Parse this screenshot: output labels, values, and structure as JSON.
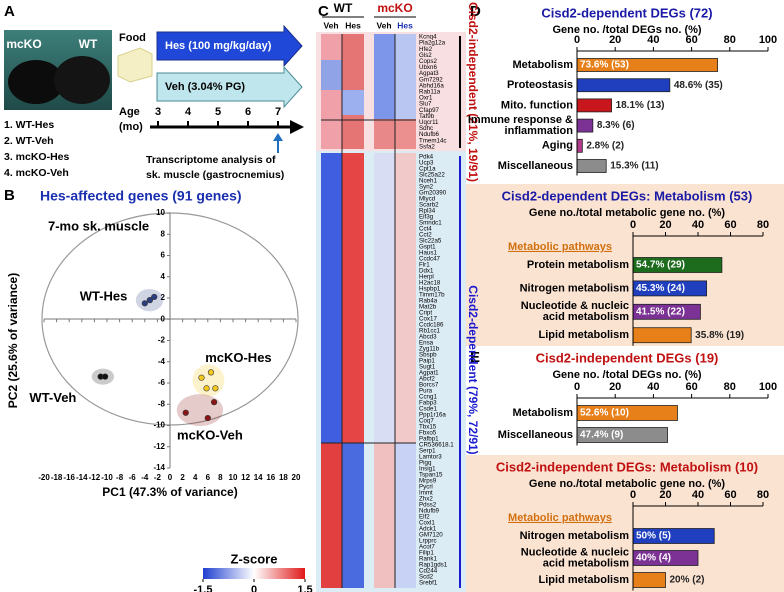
{
  "panel_labels": [
    "A",
    "B",
    "C",
    "D",
    "E"
  ],
  "design": {
    "photo_labels": [
      "mcKO",
      "WT"
    ],
    "groups": [
      "1. WT-Hes",
      "2. WT-Veh",
      "3. mcKO-Hes",
      "4. mcKO-Veh"
    ],
    "food": "Food",
    "hes": "Hes (100 mg/kg/day)",
    "veh": "Veh (3.04% PG)",
    "age": "Age",
    "age_unit": "(mo)",
    "ages": [
      3,
      4,
      5,
      6,
      7
    ],
    "analysis": [
      "Transcriptome analysis of",
      "sk. muscle (gastrocnemius)"
    ]
  },
  "heatmap": {
    "groups": [
      "WT",
      "mcKO"
    ],
    "columns": [
      "Veh",
      "Hes",
      "Veh",
      "Hes"
    ],
    "sections": [
      {
        "label": "Cisd2-independent (21%, 19/91)",
        "genes": [
          "Kcnq4",
          "Pla2g12a",
          "Hfe2",
          "Gls2",
          "Cops2",
          "Ubxn6",
          "Agpat3",
          "Gm7292",
          "Abhd16a",
          "Rab11a",
          "Oxr1",
          "Slu7",
          "Cfap97",
          "Taf9b",
          "Uqcr11",
          "Sdhc",
          "Ndufb6",
          "Tmem14c",
          "Ssfa2"
        ]
      },
      {
        "label": "Cisd2-dependent (79%, 72/91)",
        "genes": [
          "Pdk4",
          "Ucp3",
          "Cpt1a",
          "Slc25a22",
          "Nceh1",
          "Syn2",
          "Gm20390",
          "Mlycd",
          "Scarb2",
          "Rpl34",
          "Eif3g",
          "Smndc1",
          "Cct4",
          "Cct2",
          "Slc22a5",
          "Gspt1",
          "Haus1",
          "Ccdc47",
          "Flr1",
          "Ddx1",
          "Herpl",
          "H2ac18",
          "Hspbp1",
          "Timm17b",
          "Rab4a",
          "Mat2b",
          "Cript",
          "Cox17",
          "Ccdc186",
          "Rb1cc1",
          "Abcd3",
          "Ensa",
          "Zyg11b",
          "Sbspb",
          "Paip1",
          "Sugt1",
          "Agpat1",
          "Abcf2",
          "Borcs7",
          "Pura",
          "Ccng1",
          "Fabp3",
          "Csde1",
          "Ppp1r16a",
          "Coq7",
          "Tbx15",
          "Fbxo5",
          "Pafbp1",
          "CR536618.1",
          "Serp1",
          "Lamtor3",
          "Pigq",
          "Insig1",
          "Tspan15",
          "Mrps9",
          "Pycrl",
          "Immt",
          "Zhx2",
          "Pdss2",
          "Ndufb9",
          "Elf2",
          "Coxl1",
          "Adck1",
          "GM7120",
          "Lrpprc",
          "Acot7",
          "Filip1",
          "Rank1",
          "Rap1gds1",
          "Cd244",
          "Scd2",
          "Srebf1"
        ]
      }
    ],
    "legend": {
      "title": "Z-score",
      "lim": [
        -1.5,
        1.5
      ],
      "ticks": [
        -1.5,
        0,
        1.5
      ]
    }
  },
  "chart_data": [
    {
      "type": "scatter",
      "title": "Hes-affected genes (91 genes)",
      "title_color": "#1a2fb0",
      "subtitle": "7-mo sk. muscle",
      "xlabel": "PC1 (47.3% of variance)",
      "ylabel": "PC2 (25.6% of variance)",
      "xlim": [
        -20,
        20
      ],
      "ylim": [
        -14,
        10
      ],
      "xticks": [
        -20,
        -18,
        -16,
        -14,
        -12,
        -10,
        -8,
        -6,
        -4,
        -2,
        0,
        2,
        4,
        6,
        8,
        10,
        12,
        14,
        16,
        18,
        20
      ],
      "yticks": [
        10,
        8,
        6,
        4,
        2,
        0,
        -2,
        -4,
        -6,
        -8,
        -10,
        -12,
        -14
      ],
      "series": [
        {
          "name": "WT-Hes",
          "color": "#2b3f80",
          "x": [
            -4,
            -3.2,
            -2.5
          ],
          "y": [
            1.5,
            1.8,
            2.1
          ]
        },
        {
          "name": "WT-Veh",
          "color": "#111111",
          "x": [
            -11,
            -10.3
          ],
          "y": [
            -5.4,
            -5.4
          ]
        },
        {
          "name": "mcKO-Hes",
          "color": "#f2c81c",
          "x": [
            5,
            6.5,
            5.8,
            7.2
          ],
          "y": [
            -5.5,
            -5,
            -6.5,
            -6.5
          ]
        },
        {
          "name": "mcKO-Veh",
          "color": "#8b1414",
          "x": [
            2.5,
            6,
            7
          ],
          "y": [
            -8.8,
            -9.3,
            -7.8
          ]
        }
      ]
    },
    {
      "type": "hbar",
      "title": "Cisd2-dependent DEGs (72)",
      "title_color": "#1a1aa6",
      "xlabel": "Gene no. /total DEGs no. (%)",
      "categories": [
        "Metabolism",
        "Proteostasis",
        "Mito. function",
        [
          "Immune response &",
          "inflammation"
        ],
        "Aging",
        "Miscellaneous"
      ],
      "values": [
        73.6,
        48.6,
        18.1,
        8.3,
        2.8,
        15.3
      ],
      "value_labels": [
        "73.6% (53)",
        "48.6% (35)",
        "18.1% (13)",
        "8.3% (6)",
        "2.8% (2)",
        "15.3% (11)"
      ],
      "colors": [
        "#e8801a",
        "#1f3fbf",
        "#c8161d",
        "#7b3294",
        "#b03a8a",
        "#8c8c8c"
      ],
      "xlim": [
        0,
        100
      ],
      "xticks": [
        0,
        20,
        40,
        60,
        80,
        100
      ]
    },
    {
      "type": "hbar",
      "title": "Cisd2-dependent DEGs: Metabolism (53)",
      "title_color": "#1a1aa6",
      "xlabel": "Gene no./total metabolic gene no. (%)",
      "section_label": "Metabolic pathways",
      "categories": [
        "Protein metabolism",
        "Nitrogen metabolism",
        [
          "Nucleotide & nucleic",
          "acid metabolism"
        ],
        "Lipid metabolism"
      ],
      "values": [
        54.7,
        45.3,
        41.5,
        35.8
      ],
      "value_labels": [
        "54.7% (29)",
        "45.3% (24)",
        "41.5% (22)",
        "35.8% (19)"
      ],
      "colors": [
        "#1d6b1d",
        "#1f3fbf",
        "#7b3294",
        "#e8801a"
      ],
      "xlim": [
        0,
        80
      ],
      "xticks": [
        0,
        20,
        40,
        60,
        80
      ]
    },
    {
      "type": "hbar",
      "title": "Cisd2-independent DEGs (19)",
      "title_color": "#c01010",
      "xlabel": "Gene no. /total DEGs no. (%)",
      "categories": [
        "Metabolism",
        "Miscellaneous"
      ],
      "values": [
        52.6,
        47.4
      ],
      "value_labels": [
        "52.6% (10)",
        "47.4% (9)"
      ],
      "colors": [
        "#e8801a",
        "#8c8c8c"
      ],
      "xlim": [
        0,
        100
      ],
      "xticks": [
        0,
        20,
        40,
        60,
        80,
        100
      ]
    },
    {
      "type": "hbar",
      "title": "Cisd2-independent DEGs: Metabolism (10)",
      "title_color": "#c01010",
      "xlabel": "Gene no./total metabolic gene no. (%)",
      "section_label": "Metabolic pathways",
      "categories": [
        "Nitrogen metabolism",
        [
          "Nucleotide & nucleic",
          "acid metabolism"
        ],
        "Lipid metabolism"
      ],
      "values": [
        50,
        40,
        20
      ],
      "value_labels": [
        "50% (5)",
        "40% (4)",
        "20% (2)"
      ],
      "colors": [
        "#1f3fbf",
        "#7b3294",
        "#e8801a"
      ],
      "xlim": [
        0,
        80
      ],
      "xticks": [
        0,
        20,
        40,
        60,
        80
      ]
    }
  ]
}
